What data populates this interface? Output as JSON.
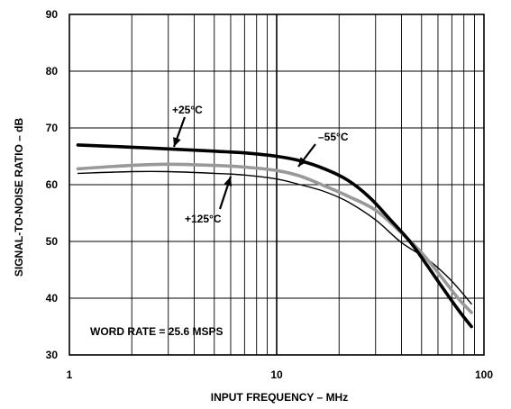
{
  "chart_data": {
    "type": "line",
    "xlabel": "INPUT FREQUENCY – MHz",
    "ylabel": "SIGNAL-TO-NOISE RATIO – dB",
    "x_scale": "log",
    "xlim": [
      1,
      100
    ],
    "ylim": [
      30,
      90
    ],
    "x_ticks": [
      1,
      10,
      100
    ],
    "x_tick_labels": [
      "1",
      "10",
      "100"
    ],
    "y_ticks": [
      30,
      40,
      50,
      60,
      70,
      80,
      90
    ],
    "y_tick_labels": [
      "30",
      "40",
      "50",
      "60",
      "70",
      "80",
      "90"
    ],
    "grid": true,
    "annotations": [
      {
        "id": "ann-25",
        "text": "+25°C"
      },
      {
        "id": "ann-m55",
        "text": "–55°C"
      },
      {
        "id": "ann-125",
        "text": "+125°C"
      },
      {
        "id": "ann-word-rate",
        "text": "WORD RATE = 25.6 MSPS"
      }
    ],
    "series": [
      {
        "name": "+25°C",
        "color": "#000000",
        "style": "thick",
        "x": [
          1.1,
          2,
          3,
          5,
          7,
          10,
          13,
          17,
          22,
          28,
          35,
          45,
          60,
          75,
          87
        ],
        "y": [
          67.0,
          66.6,
          66.3,
          65.9,
          65.6,
          65.0,
          64.2,
          62.8,
          60.8,
          57.8,
          54.0,
          49.5,
          43.0,
          38.0,
          35.0
        ]
      },
      {
        "name": "–55°C",
        "color": "#999999",
        "style": "thick",
        "x": [
          1.1,
          2,
          3,
          5,
          7,
          10,
          13,
          17,
          22,
          30,
          40,
          50,
          60,
          75,
          87
        ],
        "y": [
          62.8,
          63.4,
          63.6,
          63.4,
          63.1,
          62.5,
          61.5,
          59.8,
          58.0,
          55.5,
          51.5,
          48.0,
          44.5,
          40.0,
          37.5
        ]
      },
      {
        "name": "+125°C",
        "color": "#000000",
        "style": "thin",
        "x": [
          1.1,
          2,
          3,
          5,
          7,
          10,
          13,
          17,
          22,
          30,
          40,
          55,
          70,
          87
        ],
        "y": [
          62.0,
          62.3,
          62.3,
          62.0,
          61.7,
          61.0,
          60.0,
          58.8,
          57.0,
          53.8,
          49.8,
          46.5,
          43.0,
          39.0
        ]
      }
    ]
  }
}
